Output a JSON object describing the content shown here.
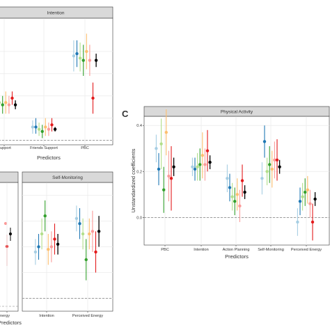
{
  "colors": {
    "series": [
      "#a6cee3",
      "#1f78b4",
      "#b2df8a",
      "#33a02c",
      "#fdbf6f",
      "#fb9a99",
      "#e31a1c",
      "#000000"
    ],
    "strip_fill": "#d9d9d9",
    "strip_border": "#333333",
    "grid": "#ebebeb",
    "zero_line": "#7f7f7f"
  },
  "chart_data": [
    {
      "type": "scatter",
      "variant": "point-range",
      "panel_label": "",
      "strips": [
        "Intention"
      ],
      "categories": [
        "upport",
        "Friends Support",
        "PBC"
      ],
      "xlabel": "Predictors",
      "ylabel": "",
      "ylim": [
        -0.02,
        0.55
      ],
      "yticks": [],
      "grid": true,
      "legend": "none",
      "points": [
        [
          0.15,
          0.11,
          0.19
        ],
        [
          0.16,
          0.12,
          0.2
        ],
        [
          0.17,
          0.13,
          0.21
        ],
        [
          0.16,
          0.12,
          0.2
        ],
        [
          0.17,
          0.12,
          0.22
        ],
        [
          0.16,
          0.12,
          0.2
        ],
        [
          0.19,
          0.16,
          0.22
        ],
        [
          0.16,
          0.14,
          0.18
        ],
        [
          0.06,
          0.03,
          0.09
        ],
        [
          0.06,
          0.03,
          0.1
        ],
        [
          0.05,
          0.02,
          0.08
        ],
        [
          0.04,
          0.01,
          0.07
        ],
        [
          0.06,
          0.02,
          0.1
        ],
        [
          0.05,
          0.02,
          0.08
        ],
        [
          0.07,
          0.04,
          0.1
        ],
        [
          0.05,
          0.04,
          0.06
        ],
        [
          0.38,
          0.31,
          0.45
        ],
        [
          0.39,
          0.33,
          0.45
        ],
        [
          0.37,
          0.31,
          0.44
        ],
        [
          0.36,
          0.29,
          0.43
        ],
        [
          0.4,
          0.32,
          0.48
        ],
        [
          0.36,
          0.29,
          0.43
        ],
        [
          0.19,
          0.12,
          0.26
        ],
        [
          0.36,
          0.33,
          0.39
        ]
      ]
    },
    {
      "type": "scatter",
      "variant": "point-range",
      "panel_label": "",
      "strips": [
        "",
        "Self-Monitoring"
      ],
      "categories": [
        "nergy",
        "Intention",
        "Perceived Energy"
      ],
      "xlabel": "Predictors",
      "ylabel": "",
      "ylim": [
        -0.05,
        0.45
      ],
      "yticks": [],
      "grid": true,
      "legend": "none",
      "points": [
        [
          0.13,
          0.05,
          0.21
        ],
        [
          0.12,
          0.03,
          0.21
        ],
        [
          0.11,
          0.03,
          0.19
        ],
        [
          0.09,
          0.01,
          0.17
        ],
        [
          0.12,
          0.03,
          0.21
        ],
        [
          0.1,
          0.02,
          0.18
        ],
        [
          0.05,
          -0.03,
          0.13
        ],
        [
          0.11,
          0.07,
          0.15
        ],
        [
          0.18,
          0.13,
          0.23
        ],
        [
          0.2,
          0.15,
          0.25
        ],
        [
          0.25,
          0.19,
          0.31
        ],
        [
          0.32,
          0.26,
          0.38
        ],
        [
          0.19,
          0.13,
          0.25
        ],
        [
          0.2,
          0.14,
          0.26
        ],
        [
          0.23,
          0.17,
          0.29
        ],
        [
          0.21,
          0.17,
          0.25
        ],
        [
          0.31,
          0.26,
          0.36
        ],
        [
          0.29,
          0.23,
          0.35
        ],
        [
          0.25,
          0.19,
          0.31
        ],
        [
          0.15,
          0.07,
          0.23
        ],
        [
          0.25,
          0.19,
          0.31
        ],
        [
          0.26,
          0.18,
          0.34
        ],
        [
          0.18,
          0.1,
          0.26
        ],
        [
          0.26,
          0.2,
          0.32
        ]
      ]
    },
    {
      "type": "scatter",
      "variant": "point-range",
      "panel_label": "C",
      "strips": [
        "Physical Activity"
      ],
      "categories": [
        "PBC",
        "Intention",
        "Action Planning",
        "Self-Monitoring",
        "Perceived Energy"
      ],
      "xlabel": "Predictors",
      "ylabel": "Unstandardized coefficients",
      "ylim": [
        -0.12,
        0.44
      ],
      "yticks": [
        "0.0",
        "0.2",
        "0.4"
      ],
      "ytick_values": [
        0,
        0.2,
        0.4
      ],
      "grid": true,
      "legend": "none",
      "points": [
        [
          0.3,
          0.24,
          0.36
        ],
        [
          0.21,
          0.14,
          0.28
        ],
        [
          0.32,
          0.21,
          0.43
        ],
        [
          0.12,
          0.02,
          0.22
        ],
        [
          0.37,
          0.27,
          0.47
        ],
        [
          0.18,
          0.07,
          0.29
        ],
        [
          0.17,
          0.03,
          0.31
        ],
        [
          0.22,
          0.18,
          0.26
        ],
        [
          0.22,
          0.18,
          0.26
        ],
        [
          0.21,
          0.16,
          0.26
        ],
        [
          0.22,
          0.16,
          0.28
        ],
        [
          0.23,
          0.16,
          0.3
        ],
        [
          0.27,
          0.17,
          0.37
        ],
        [
          0.23,
          0.16,
          0.3
        ],
        [
          0.29,
          0.2,
          0.38
        ],
        [
          0.24,
          0.21,
          0.27
        ],
        [
          0.17,
          0.11,
          0.23
        ],
        [
          0.13,
          0.07,
          0.19
        ],
        [
          0.09,
          0.03,
          0.15
        ],
        [
          0.07,
          0.01,
          0.13
        ],
        [
          0.1,
          0.03,
          0.17
        ],
        [
          0.05,
          -0.02,
          0.12
        ],
        [
          0.16,
          0.09,
          0.23
        ],
        [
          0.11,
          0.08,
          0.14
        ],
        [
          0.17,
          0.1,
          0.24
        ],
        [
          0.33,
          0.26,
          0.4
        ],
        [
          0.2,
          0.14,
          0.26
        ],
        [
          0.23,
          0.15,
          0.31
        ],
        [
          0.21,
          0.13,
          0.29
        ],
        [
          0.25,
          0.17,
          0.33
        ],
        [
          0.25,
          0.16,
          0.34
        ],
        [
          0.22,
          0.19,
          0.25
        ],
        [
          -0.02,
          -0.08,
          0.04
        ],
        [
          0.07,
          0.01,
          0.13
        ],
        [
          0.09,
          0.03,
          0.15
        ],
        [
          0.11,
          0.05,
          0.17
        ],
        [
          0.12,
          0.06,
          0.18
        ],
        [
          0.06,
          0.0,
          0.12
        ],
        [
          -0.02,
          -0.1,
          0.06
        ],
        [
          0.08,
          0.05,
          0.11
        ]
      ]
    }
  ]
}
